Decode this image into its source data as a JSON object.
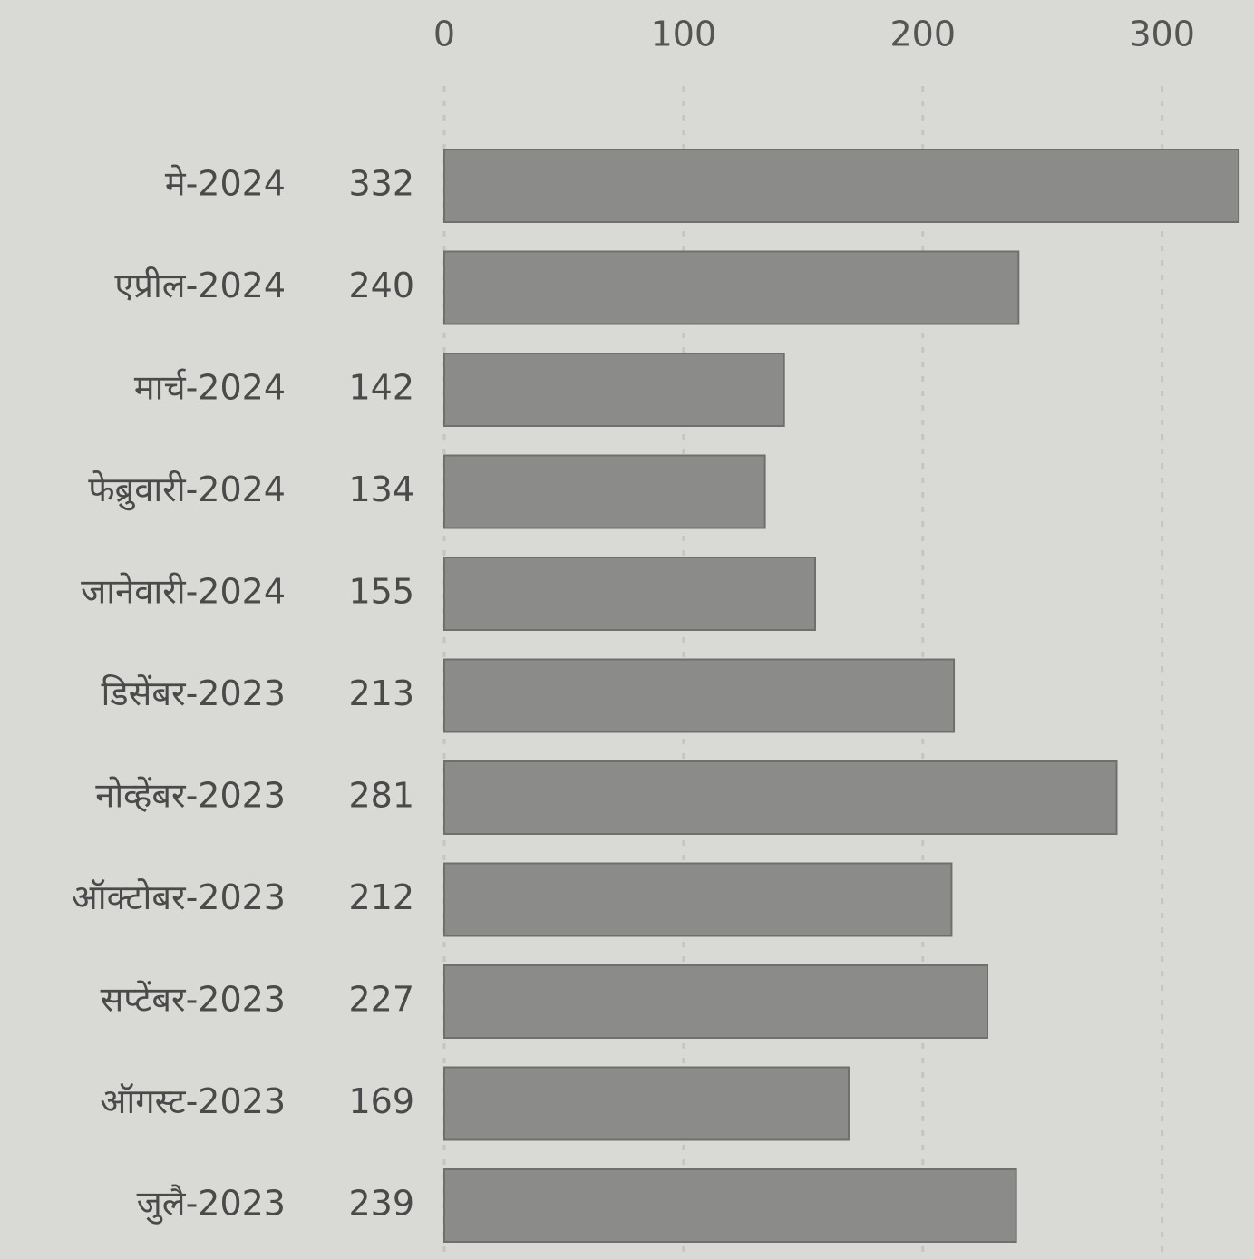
{
  "chart_data": {
    "type": "bar",
    "orientation": "horizontal",
    "categories": [
      "मे-2024",
      "एप्रील-2024",
      "मार्च-2024",
      "फेब्रुवारी-2024",
      "जानेवारी-2024",
      "डिसेंबर-2023",
      "नोव्हेंबर-2023",
      "ऑक्टोबर-2023",
      "सप्टेंबर-2023",
      "ऑगस्ट-2023",
      "जुलै-2023"
    ],
    "values": [
      332,
      240,
      142,
      134,
      155,
      213,
      281,
      212,
      227,
      169,
      239
    ],
    "color": "#8b8b89",
    "xlim": [
      0,
      335
    ],
    "xticks": [
      0,
      100,
      200,
      300
    ],
    "grid": true
  }
}
